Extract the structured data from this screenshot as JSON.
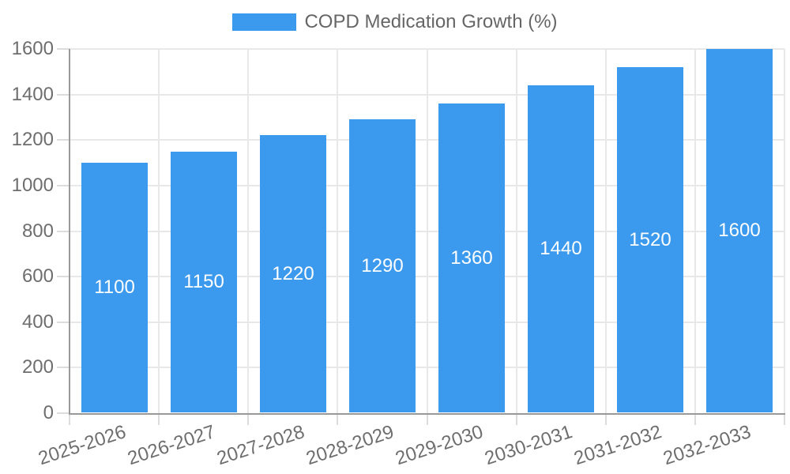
{
  "legend": {
    "label": "COPD Medication Growth (%)"
  },
  "chart_data": {
    "type": "bar",
    "title": "",
    "categories": [
      "2025-2026",
      "2026-2027",
      "2027-2028",
      "2028-2029",
      "2029-2030",
      "2030-2031",
      "2031-2032",
      "2032-2033"
    ],
    "series": [
      {
        "name": "COPD Medication Growth (%)",
        "values": [
          1100,
          1150,
          1220,
          1290,
          1360,
          1440,
          1520,
          1600
        ]
      }
    ],
    "value_labels": [
      "1100",
      "1150",
      "1220",
      "1290",
      "1360",
      "1440",
      "1520",
      "1600"
    ],
    "xlabel": "",
    "ylabel": "",
    "ylim": [
      0,
      1600
    ],
    "yticks": [
      0,
      200,
      400,
      600,
      800,
      1000,
      1200,
      1400,
      1600
    ],
    "grid": true,
    "legend_position": "top",
    "x_tick_rotation_deg": -18,
    "colors": {
      "bar": "#3B99EE",
      "value_label": "#ffffff",
      "axis_label": "#6e6e6e",
      "legend_label": "#666666",
      "gridline": "#e8e8e8",
      "axis_line": "#999999"
    }
  }
}
